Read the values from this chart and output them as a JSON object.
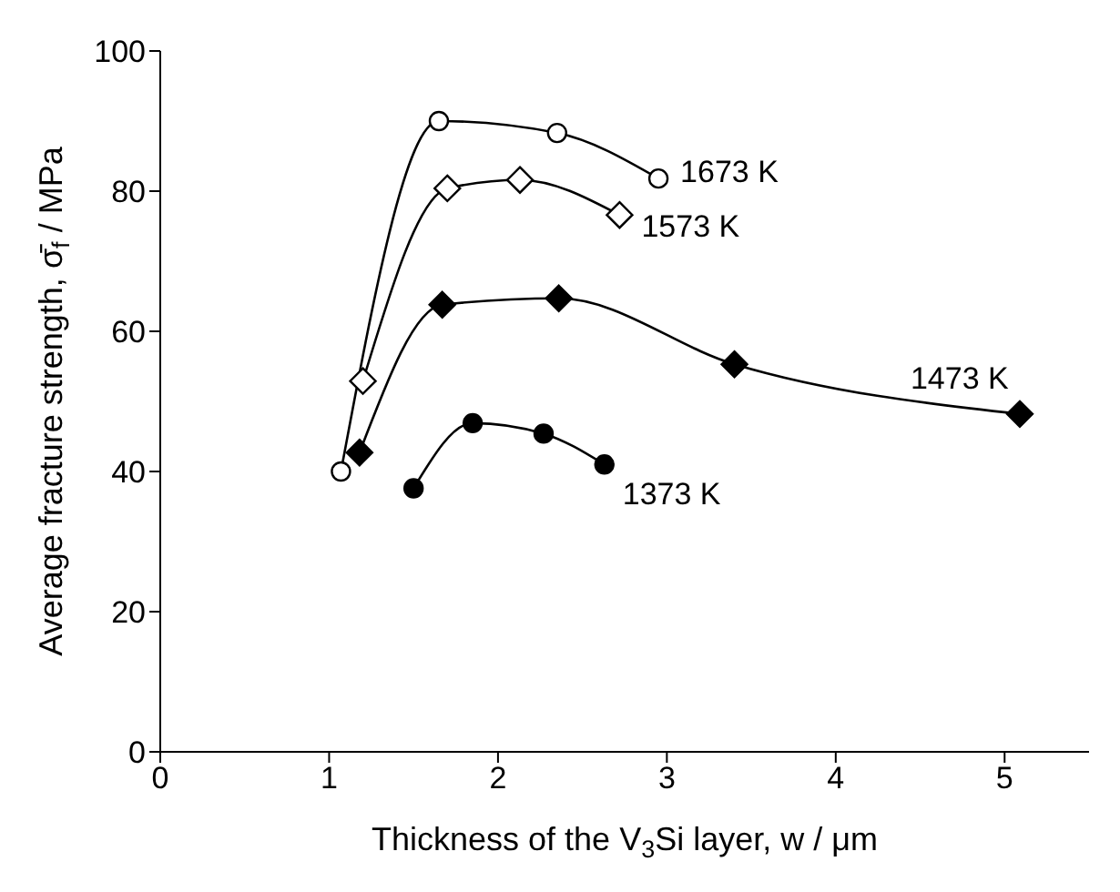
{
  "chart_data": {
    "type": "line",
    "xlabel": "Thickness of the V$_{3}$Si layer, w / μm",
    "ylabel": "Average fracture strength, σ̄$_{f}$ / MPa",
    "xlim": [
      0,
      5.5
    ],
    "ylim": [
      0,
      100
    ],
    "xticks": [
      0,
      1,
      2,
      3,
      4,
      5
    ],
    "yticks": [
      0,
      20,
      40,
      60,
      80,
      100
    ],
    "grid": false,
    "legend": false,
    "series": [
      {
        "name": "1673 K",
        "color": "#000000",
        "marker": "circle",
        "x": [
          1.07,
          1.65,
          2.35,
          2.95
        ],
        "values": [
          40,
          90,
          88.3,
          81.8
        ]
      },
      {
        "name": "1573 K",
        "color": "#000000",
        "marker": "diamond",
        "x": [
          1.2,
          1.7,
          2.13,
          2.72
        ],
        "values": [
          52.9,
          80.4,
          81.6,
          76.6
        ]
      },
      {
        "name": "1473 K",
        "color": "#000000",
        "marker": "diamond",
        "x": [
          1.18,
          1.67,
          2.36,
          3.4,
          5.09
        ],
        "values": [
          42.7,
          63.8,
          64.7,
          55.3,
          48.2
        ]
      },
      {
        "name": "1373 K",
        "color": "#000000",
        "marker": "circle",
        "x": [
          1.5,
          1.85,
          2.27,
          2.63
        ],
        "values": [
          37.6,
          46.9,
          45.4,
          41.0
        ]
      }
    ]
  }
}
